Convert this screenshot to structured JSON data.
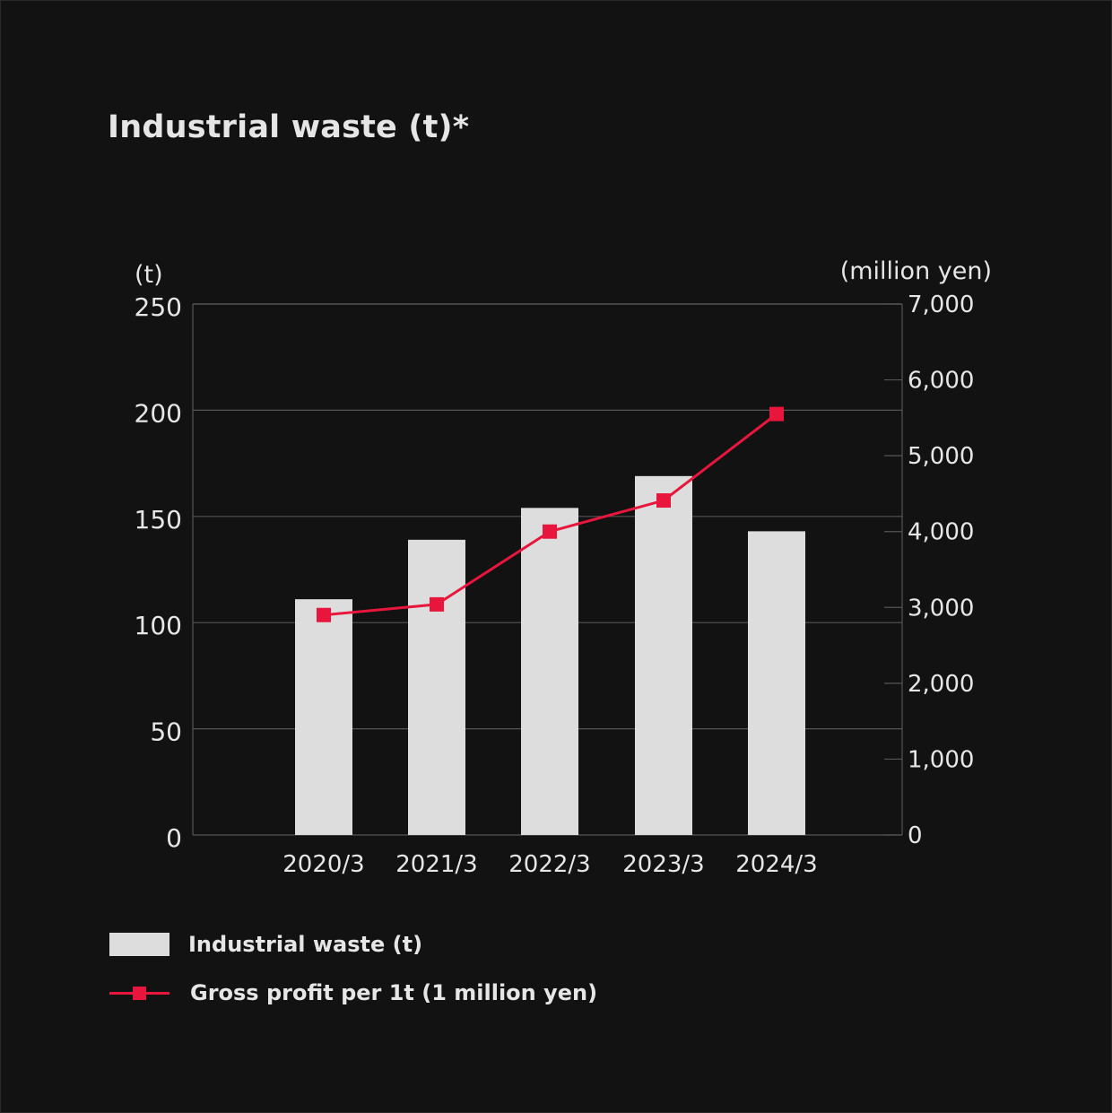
{
  "title": "Industrial waste (t)*",
  "chart_data": {
    "type": "bar+line",
    "categories": [
      "2020/3",
      "2021/3",
      "2022/3",
      "2023/3",
      "2024/3"
    ],
    "series": [
      {
        "name": "Industrial waste (t)",
        "type": "bar",
        "axis": "left",
        "values": [
          111,
          139,
          154,
          169,
          143
        ],
        "color": "#dddddd"
      },
      {
        "name": "Gross profit per 1t (1 million yen)",
        "type": "line",
        "axis": "right",
        "values": [
          2900,
          3040,
          4000,
          4410,
          5550
        ],
        "color": "#e8163c"
      }
    ],
    "left_axis": {
      "unit_label": "(t)",
      "ylim": [
        0,
        250
      ],
      "ticks": [
        0,
        50,
        100,
        150,
        200,
        250
      ],
      "tick_labels": [
        "0",
        "50",
        "100",
        "150",
        "200",
        "250"
      ]
    },
    "right_axis": {
      "unit_label": "(million yen)",
      "ylim": [
        0,
        7000
      ],
      "ticks": [
        0,
        1000,
        2000,
        3000,
        4000,
        5000,
        6000,
        7000
      ],
      "tick_labels": [
        "0",
        "1,000",
        "2,000",
        "3,000",
        "4,000",
        "5,000",
        "6,000",
        "7,000"
      ]
    },
    "grid": true,
    "legend_position": "bottom-left"
  },
  "legend": {
    "bar_label": "Industrial waste (t)",
    "line_label": "Gross profit per 1t (1 million yen)"
  },
  "colors": {
    "background": "#121212",
    "bar": "#dddddd",
    "line": "#e8163c",
    "grid": "#555555",
    "text": "#e6e6e6"
  }
}
